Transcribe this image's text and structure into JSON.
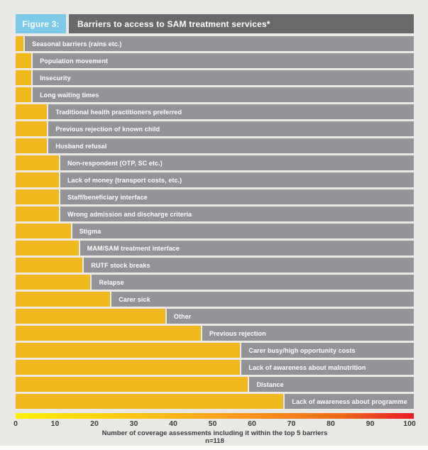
{
  "figure": {
    "tag": "Figure 3:",
    "title": "Barriers to access to SAM treatment services*"
  },
  "chart_data": {
    "type": "bar",
    "orientation": "horizontal",
    "categories": [
      "Seasonal barriers (rains etc.)",
      "Population movement",
      "Insecurity",
      "Long waiting times",
      "Traditional health practitioners preferred",
      "Previous rejection of known child",
      "Husband refusal",
      "Non-respondent (OTP, SC etc.)",
      "Lack of money (transport costs, etc.)",
      "Staff/beneficiary interface",
      "Wrong admission and discharge criteria",
      "Stigma",
      "MAM/SAM treatment interface",
      "RUTF stock breaks",
      "Relapse",
      "Carer sick",
      "Other",
      "Previous rejection",
      "Carer busy/high opportunity costs",
      "Lack of awareness about malnutrition",
      "Distance",
      "Lack of awareness about programme"
    ],
    "values": [
      2,
      4,
      4,
      4,
      8,
      8,
      8,
      11,
      11,
      11,
      11,
      14,
      16,
      17,
      19,
      24,
      38,
      47,
      57,
      57,
      59,
      68
    ],
    "xlabel": "Number of coverage assessments including it within the top 5 barriers",
    "note": "n=118",
    "xlim": [
      0,
      100
    ],
    "xticks": [
      "0",
      "10",
      "20",
      "30",
      "40",
      "50",
      "60",
      "70",
      "80",
      "90",
      "100"
    ],
    "grid": false,
    "legend": "none",
    "bar_color": "#f1b81d",
    "label_bar_color": "#939497",
    "axis_gradient": [
      "#fff200",
      "#f9a61a",
      "#f2691c",
      "#eb1c24"
    ]
  },
  "colors": {
    "figure_tag_blue": "#7cc9e9",
    "header_gray": "#696a6c",
    "panel_background": "#e9e8e5",
    "axis_text": "#3d3c3e"
  }
}
